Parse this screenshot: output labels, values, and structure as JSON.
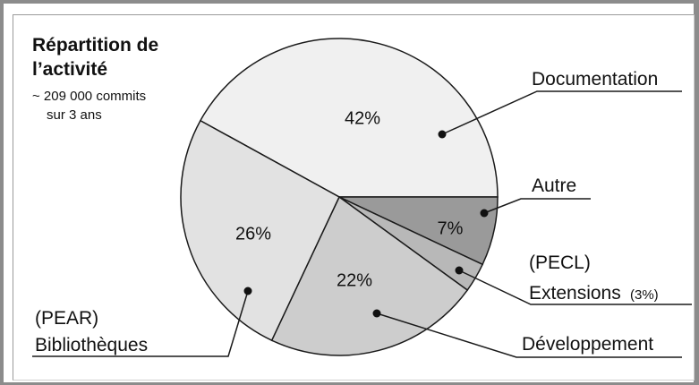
{
  "chart_data": {
    "type": "pie",
    "title_lines": [
      "Répartition de",
      "l’activité"
    ],
    "subtitle_lines": [
      "~ 209 000 commits",
      "sur 3 ans"
    ],
    "slices": [
      {
        "label": "Documentation",
        "value": 42,
        "pct_label": "42%",
        "color": "#f0f0f0"
      },
      {
        "label": "Autre",
        "value": 7,
        "pct_label": "7%",
        "color": "#9a9a9a"
      },
      {
        "label_lines": [
          "(PECL)",
          "Extensions"
        ],
        "label_suffix": "(3%)",
        "value": 3,
        "pct_label": "",
        "color": "#b8b8b8"
      },
      {
        "label": "Développement",
        "value": 22,
        "pct_label": "22%",
        "color": "#cdcdcd"
      },
      {
        "label_lines": [
          "(PEAR)",
          "Bibliothèques"
        ],
        "value": 26,
        "pct_label": "26%",
        "color": "#e2e2e2"
      }
    ]
  }
}
